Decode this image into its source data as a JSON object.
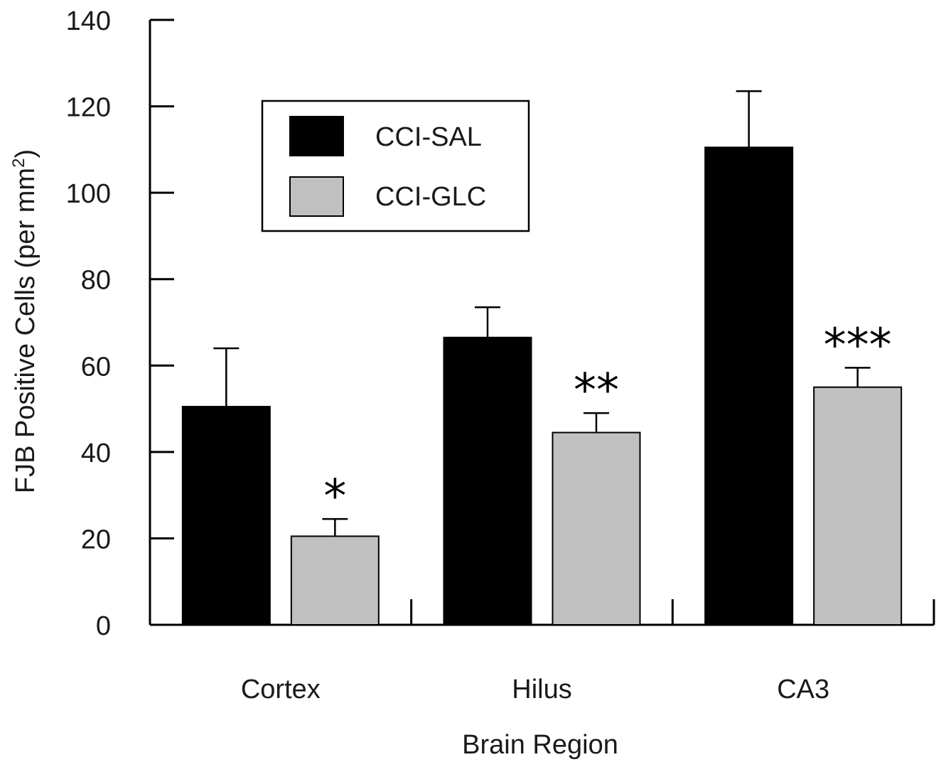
{
  "chart_data": {
    "type": "bar",
    "xlabel": "Brain Region",
    "ylabel": "FJB Positive Cells (per mm",
    "ylabel_superscript": "2",
    "ylabel_suffix": ")",
    "ylim": [
      0,
      140
    ],
    "yticks": [
      0,
      20,
      40,
      60,
      80,
      100,
      120,
      140
    ],
    "categories": [
      "Cortex",
      "Hilus",
      "CA3"
    ],
    "series": [
      {
        "name": "CCI-SAL",
        "color": "#000000",
        "values": [
          50.5,
          66.5,
          110.5
        ],
        "errors": [
          13.5,
          7,
          13
        ]
      },
      {
        "name": "CCI-GLC",
        "color": "#c0c0c0",
        "values": [
          20.5,
          44.5,
          55
        ],
        "errors": [
          4,
          4.5,
          4.5
        ]
      }
    ],
    "annotations": [
      "*",
      "**",
      "***"
    ],
    "legend": "top-left",
    "grid": false
  }
}
